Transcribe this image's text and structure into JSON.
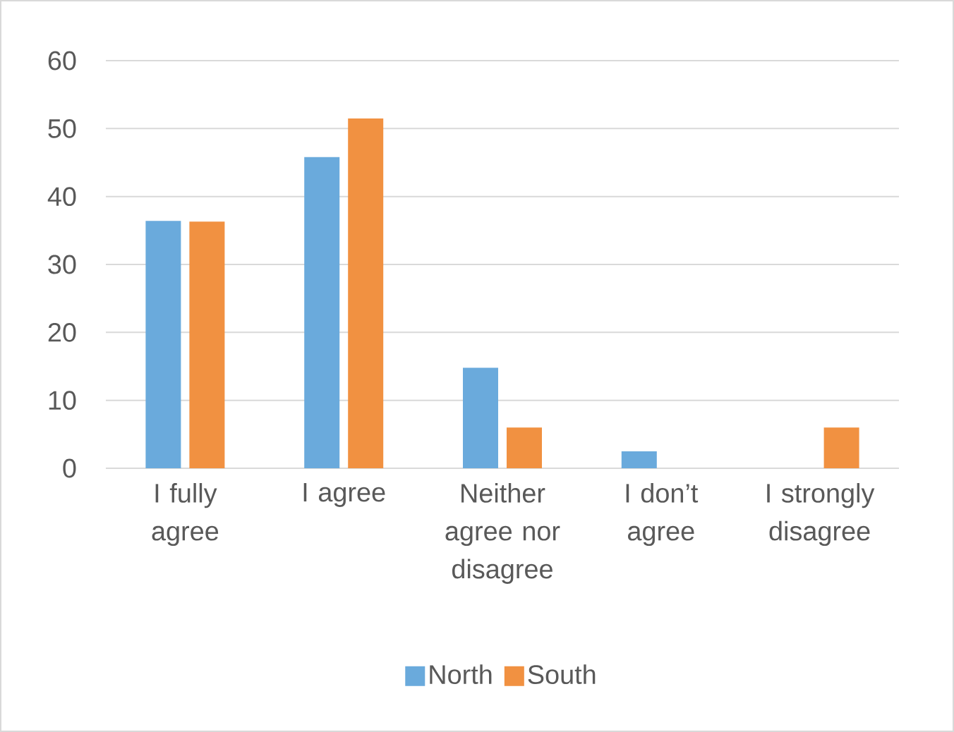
{
  "chart_data": {
    "type": "bar",
    "categories": [
      "I fully agree",
      "I agree",
      "Neither agree nor disagree",
      "I don’t agree",
      "I strongly disagree"
    ],
    "series": [
      {
        "name": "North",
        "color": "#6aaadc",
        "values": [
          36.4,
          45.8,
          14.8,
          2.5,
          0
        ]
      },
      {
        "name": "South",
        "color": "#f19141",
        "values": [
          36.3,
          51.5,
          6.0,
          0,
          6.0
        ]
      }
    ],
    "ylim": [
      0,
      60
    ],
    "yticks": [
      0,
      10,
      20,
      30,
      40,
      50,
      60
    ],
    "grid": "y",
    "legend": "bottom"
  }
}
